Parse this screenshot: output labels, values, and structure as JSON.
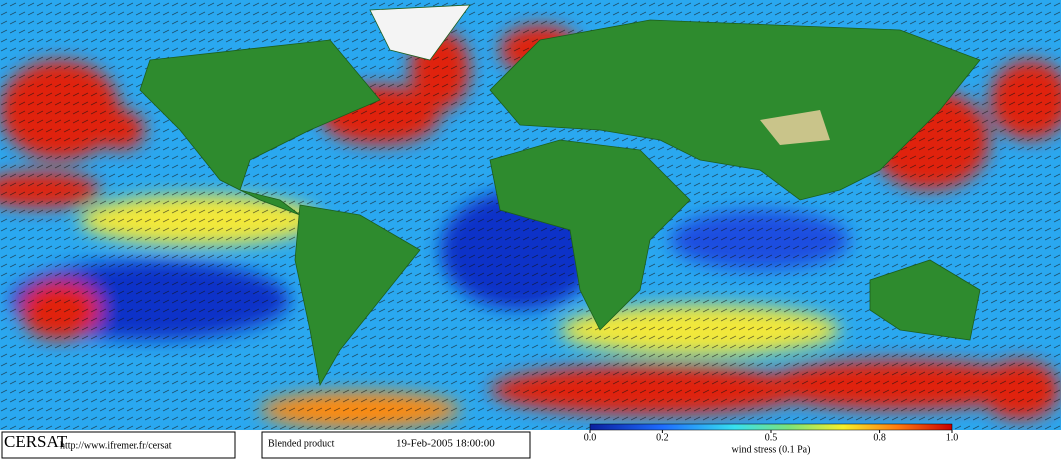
{
  "footer": {
    "logo": "CERSAT",
    "url": "http://www.ifremer.fr/cersat",
    "product": "Blended product",
    "date": "19-Feb-2005 18:00:00"
  },
  "colorbar": {
    "label": "wind stress (0.1 Pa)",
    "lim": [
      0,
      1
    ],
    "ticks": [
      {
        "value": 0,
        "label": "0.0"
      },
      0.2,
      0.5,
      0.8,
      {
        "value": 1,
        "label": "1.0"
      }
    ]
  }
}
